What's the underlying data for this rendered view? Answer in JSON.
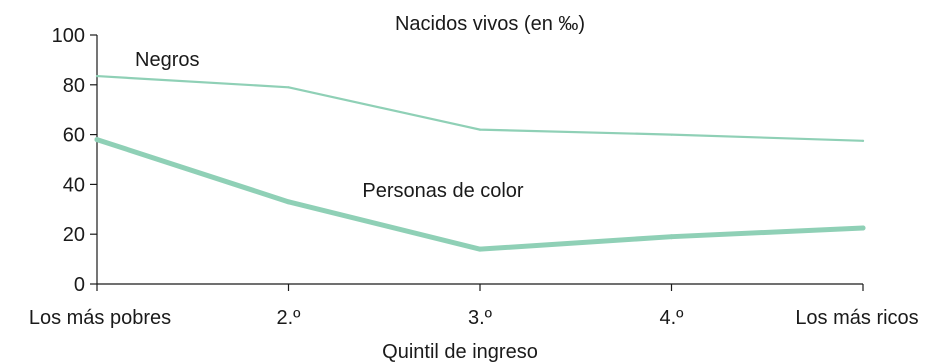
{
  "chart_data": {
    "type": "line",
    "title": "Nacidos vivos (en ‰)",
    "xlabel": "Quintil de ingreso",
    "ylabel": "",
    "ylim": [
      0,
      100
    ],
    "yticks": [
      0,
      20,
      40,
      60,
      80,
      100
    ],
    "categories": [
      "Los más pobres",
      "2.º",
      "3.º",
      "4.º",
      "Los más ricos"
    ],
    "grid": false,
    "legend": "inline labels",
    "series": [
      {
        "name": "Negros",
        "values": [
          83.5,
          79,
          62,
          60,
          57.5
        ],
        "color": "#8fd0b6",
        "style": "thin"
      },
      {
        "name": "Personas de color",
        "values": [
          58,
          33,
          14,
          19,
          22.5
        ],
        "color": "#8fd0b6",
        "style": "thick"
      }
    ]
  }
}
